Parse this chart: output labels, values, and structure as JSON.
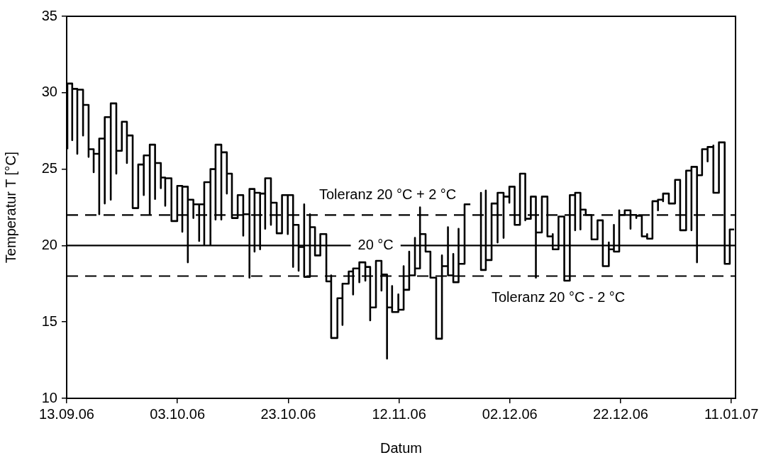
{
  "chart_data": {
    "type": "step",
    "xlabel": "Datum",
    "ylabel": "Temperatur T [°C]",
    "xlim": [
      "2006-09-13",
      "2007-01-11T18:00"
    ],
    "xticks": [
      {
        "value": "2006-09-13",
        "label": "13.09.06"
      },
      {
        "value": "2006-10-03",
        "label": "03.10.06"
      },
      {
        "value": "2006-10-23",
        "label": "23.10.06"
      },
      {
        "value": "2006-11-12",
        "label": "12.11.06"
      },
      {
        "value": "2006-12-02",
        "label": "02.12.06"
      },
      {
        "value": "2006-12-22",
        "label": "22.12.06"
      },
      {
        "value": "2007-01-11",
        "label": "11.01.07"
      }
    ],
    "ylim": [
      10,
      35
    ],
    "yticks": [
      10,
      15,
      20,
      25,
      30,
      35
    ],
    "ref_lines": [
      {
        "axis": "y",
        "value": 20,
        "label": "20 °C",
        "line_style": "solid",
        "color": "#000000"
      },
      {
        "axis": "y",
        "value": 22,
        "label": "Toleranz 20 °C + 2 °C",
        "line_style": "dashed",
        "color": "#000000"
      },
      {
        "axis": "y",
        "value": 18,
        "label": "Toleranz 20 °C - 2 °C",
        "line_style": "dashed",
        "color": "#000000"
      }
    ],
    "series": [
      {
        "color": "#000000",
        "x": [
          "2006-09-13T03:00",
          "2006-09-13T03:00",
          "2006-09-14T00:00",
          "2006-09-14T00:00",
          "2006-09-14T00:00",
          "2006-09-14T22:00",
          "2006-09-14T22:00",
          "2006-09-14T22:00",
          "2006-09-15T23:00",
          "2006-09-15T23:00",
          "2006-09-15T23:00",
          "2006-09-16T23:00",
          "2006-09-16T23:00",
          "2006-09-16T23:00",
          "2006-09-17T21:00",
          "2006-09-17T21:00",
          "2006-09-17T21:00",
          "2006-09-18T21:00",
          "2006-09-18T21:00",
          "2006-09-18T21:00",
          "2006-09-19T21:00",
          "2006-09-19T21:00",
          "2006-09-19T21:00",
          "2006-09-20T23:00",
          "2006-09-20T23:00",
          "2006-09-20T23:00",
          "2006-09-21T23:00",
          "2006-09-21T23:00",
          "2006-09-21T23:00",
          "2006-09-22T23:00",
          "2006-09-22T23:00",
          "2006-09-23T21:00",
          "2006-09-23T21:00",
          "2006-09-23T21:00",
          "2006-09-24T22:00",
          "2006-09-24T22:00",
          "2006-09-24T22:00",
          "2006-09-25T22:00",
          "2006-09-25T22:00",
          "2006-09-26T22:00",
          "2006-09-26T22:00",
          "2006-09-26T22:00",
          "2006-09-28T00:00",
          "2006-09-28T00:00",
          "2006-09-28T00:00",
          "2006-09-28T23:00",
          "2006-09-28T23:00",
          "2006-09-28T23:00",
          "2006-09-30T00:00",
          "2006-09-30T00:00",
          "2006-09-30T00:00",
          "2006-09-30T19:00",
          "2006-09-30T19:00",
          "2006-09-30T19:00",
          "2006-10-01T22:00",
          "2006-10-01T22:00",
          "2006-10-01T22:00",
          "2006-10-02T23:00",
          "2006-10-02T23:00",
          "2006-10-03T21:00",
          "2006-10-03T21:00",
          "2006-10-03T21:00",
          "2006-10-04T21:00",
          "2006-10-04T21:00",
          "2006-10-04T21:00",
          "2006-10-05T21:00",
          "2006-10-05T21:00",
          "2006-10-05T21:00",
          "2006-10-06T22:00",
          "2006-10-06T22:00",
          "2006-10-06T22:00",
          "2006-10-07T20:00",
          "2006-10-07T20:00",
          "2006-10-07T20:00",
          "2006-10-08T23:00",
          "2006-10-08T23:00",
          "2006-10-08T23:00",
          "2006-10-09T21:00",
          "2006-10-09T21:00",
          "2006-10-09T21:00",
          "2006-10-10T22:00",
          "2006-10-10T22:00",
          "2006-10-10T22:00",
          "2006-10-11T22:00",
          "2006-10-11T22:00",
          "2006-10-11T22:00",
          "2006-10-12T20:00",
          "2006-10-12T20:00",
          "2006-10-12T20:00",
          "2006-10-13T21:00",
          "2006-10-14T21:00",
          "2006-10-14T21:00",
          "2006-10-14T21:00",
          "2006-10-16T00:00",
          "2006-10-16T00:00",
          "2006-10-16T00:00",
          "2006-10-16T22:00",
          "2006-10-16T22:00",
          "2006-10-16T22:00",
          "2006-10-17T22:00",
          "2006-10-17T22:00",
          "2006-10-17T22:00",
          "2006-10-18T20:00",
          "2006-10-18T20:00",
          "2006-10-18T20:00",
          "2006-10-19T21:00",
          "2006-10-19T21:00",
          "2006-10-19T21:00",
          "2006-10-20T22:00",
          "2006-10-20T22:00",
          "2006-10-20T22:00",
          "2006-10-21T21:00",
          "2006-10-21T21:00",
          "2006-10-22T22:00",
          "2006-10-22T22:00",
          "2006-10-23T21:00",
          "2006-10-23T21:00",
          "2006-10-23T21:00",
          "2006-10-24T21:00",
          "2006-10-24T21:00",
          "2006-10-24T21:00",
          "2006-10-25T21:00",
          "2006-10-25T21:00",
          "2006-10-26T22:00",
          "2006-10-26T22:00",
          "2006-10-27T20:00",
          "2006-10-28T19:00",
          "2006-10-29T21:00",
          "2006-10-29T21:00",
          "2006-10-30T18:00",
          "2006-10-30T18:00",
          "2006-10-31T21:00",
          "2006-10-31T21:00",
          "2006-11-01T19:00",
          "2006-11-01T19:00",
          "2006-11-01T19:00",
          "2006-11-02T22:00",
          "2006-11-03T17:00",
          "2006-11-03T17:00",
          "2006-11-03T17:00",
          "2006-11-04T20:00",
          "2006-11-04T20:00",
          "2006-11-04T20:00",
          "2006-11-05T22:00",
          "2006-11-05T22:00",
          "2006-11-05T22:00",
          "2006-11-06T19:00",
          "2006-11-06T19:00",
          "2006-11-06T19:00",
          "2006-11-07T20:00",
          "2006-11-07T20:00",
          "2006-11-08T20:00",
          "2006-11-08T20:00",
          "2006-11-09T20:00",
          "2006-11-09T20:00",
          "2006-11-09T20:00",
          "2006-11-10T18:00",
          "2006-11-10T18:00",
          "2006-11-11T21:00",
          "2006-11-11T21:00",
          "2006-11-12T20:00",
          "2006-11-12T20:00",
          "2006-11-13T20:00",
          "2006-11-13T20:00",
          "2006-11-14T21:00",
          "2006-11-14T21:00",
          "2006-11-14T21:00",
          "2006-11-15T19:00",
          "2006-11-15T19:00",
          "2006-11-15T19:00",
          "2006-11-16T19:00",
          "2006-11-17T16:00",
          "2006-11-18T17:00",
          "2006-11-19T18:00",
          "2006-11-19T18:00",
          "2006-11-20T20:00",
          "2006-11-20T20:00",
          "2006-11-20T20:00",
          "2006-11-21T19:00",
          "2006-11-21T19:00",
          "2006-11-22T18:00",
          "2006-11-22T18:00",
          "2006-11-23T20:00",
          "2006-11-23T20:00",
          "2006-11-23T20:00",
          "2006-11-24T21:00",
          "2006-11-25T18:00",
          "2006-11-26T19:00",
          "2006-11-26T19:00",
          "2006-11-27T16:00",
          "2006-11-27T16:00",
          "2006-11-28T17:00",
          "2006-11-28T17:00",
          "2006-11-29T19:00",
          "2006-11-29T19:00",
          "2006-11-29T19:00",
          "2006-11-30T21:00",
          "2006-11-30T21:00",
          "2006-11-30T21:00",
          "2006-12-01T22:00",
          "2006-12-01T22:00",
          "2006-12-02T21:00",
          "2006-12-02T21:00",
          "2006-12-03T20:00",
          "2006-12-03T20:00",
          "2006-12-04T19:00",
          "2006-12-04T19:00",
          "2006-12-04T19:00",
          "2006-12-05T19:00",
          "2006-12-05T19:00",
          "2006-12-06T17:00",
          "2006-12-06T17:00",
          "2006-12-06T17:00",
          "2006-12-07T19:00",
          "2006-12-07T19:00",
          "2006-12-08T19:00",
          "2006-12-08T19:00",
          "2006-12-09T18:00",
          "2006-12-09T18:00",
          "2006-12-10T19:00",
          "2006-12-10T19:00",
          "2006-12-11T20:00",
          "2006-12-11T20:00",
          "2006-12-12T20:00",
          "2006-12-12T20:00",
          "2006-12-13T19:00",
          "2006-12-13T19:00",
          "2006-12-13T19:00",
          "2006-12-14T18:00",
          "2006-12-14T18:00",
          "2006-12-14T18:00",
          "2006-12-15T17:00",
          "2006-12-16T18:00",
          "2006-12-17T20:00",
          "2006-12-17T20:00",
          "2006-12-18T19:00",
          "2006-12-18T19:00",
          "2006-12-18T19:00",
          "2006-12-19T21:00",
          "2006-12-19T21:00",
          "2006-12-20T19:00",
          "2006-12-20T19:00",
          "2006-12-21T18:00",
          "2006-12-21T18:00",
          "2006-12-21T18:00",
          "2006-12-22T18:00",
          "2006-12-23T19:00",
          "2006-12-23T19:00",
          "2006-12-23T19:00",
          "2006-12-24T20:00",
          "2006-12-24T20:00",
          "2006-12-25T20:00",
          "2006-12-25T20:00",
          "2006-12-25T20:00",
          "2006-12-26T19:00",
          "2006-12-26T19:00",
          "2006-12-27T18:00",
          "2006-12-27T18:00",
          "2006-12-28T18:00",
          "2006-12-28T18:00",
          "2006-12-29T16:00",
          "2006-12-29T16:00",
          "2006-12-30T17:00",
          "2006-12-30T17:00",
          "2006-12-31T20:00",
          "2006-12-31T20:00",
          "2007-01-01T18:00",
          "2007-01-01T18:00",
          "2007-01-01T18:00",
          "2007-01-02T20:00",
          "2007-01-02T20:00",
          "2007-01-03T19:00",
          "2007-01-03T19:00",
          "2007-01-03T19:00",
          "2007-01-04T19:00",
          "2007-01-04T19:00",
          "2007-01-04T19:00",
          "2007-01-05T17:00",
          "2007-01-05T17:00",
          "2007-01-06T17:00",
          "2007-01-06T17:00",
          "2007-01-06T17:00",
          "2007-01-07T18:00",
          "2007-01-07T18:00",
          "2007-01-07T18:00",
          "2007-01-08T18:00",
          "2007-01-08T18:00",
          "2007-01-09T19:00",
          "2007-01-09T19:00",
          "2007-01-09T19:00",
          "2007-01-10T17:00",
          "2007-01-10T17:00",
          "2007-01-11T12:00"
        ],
        "values": [
          26.3,
          28.4,
          30.6,
          26.9,
          28.5,
          30.25,
          26.0,
          28.2,
          30.2,
          27.2,
          28.3,
          29.2,
          25.8,
          26.3,
          26.3,
          24.8,
          26.0,
          26.0,
          22.05,
          24.45,
          27.0,
          22.75,
          25.15,
          28.4,
          23.0,
          26.5,
          29.3,
          24.7,
          27.7,
          26.2,
          26.8,
          28.1,
          25.4,
          26.8,
          27.2,
          25.1,
          25.9,
          22.45,
          24.45,
          25.3,
          23.3,
          24.4,
          25.9,
          22.05,
          24.2,
          26.6,
          23.05,
          24.8,
          25.4,
          23.75,
          23.85,
          24.45,
          22.6,
          23.0,
          24.4,
          22.1,
          23.15,
          21.6,
          21.9,
          23.9,
          20.9,
          22.5,
          23.85,
          18.9,
          22.45,
          23.0,
          21.8,
          22.05,
          22.7,
          20.3,
          21.05,
          22.7,
          20.05,
          21.6,
          24.15,
          20.05,
          23.2,
          25.0,
          21.7,
          23.85,
          26.6,
          21.7,
          24.4,
          26.1,
          23.4,
          24.4,
          24.7,
          22.75,
          23.85,
          21.8,
          23.3,
          20.65,
          20.75,
          22.05,
          17.9,
          22.05,
          23.7,
          19.6,
          22.05,
          23.45,
          19.75,
          22.2,
          23.4,
          21.1,
          22.3,
          24.4,
          21.35,
          22.35,
          22.8,
          21.6,
          21.75,
          20.8,
          21.75,
          23.3,
          20.75,
          23.3,
          18.6,
          19.3,
          21.35,
          18.35,
          20.4,
          19.9,
          22.7,
          17.95,
          22.05,
          21.2,
          19.35,
          20.75,
          20.4,
          17.65,
          18.05,
          13.95,
          15.25,
          16.55,
          14.8,
          15.1,
          17.5,
          18.3,
          16.8,
          18.05,
          18.5,
          17.6,
          18.35,
          18.9,
          17.7,
          18.2,
          18.6,
          15.1,
          17.95,
          15.95,
          18.3,
          19.0,
          17.05,
          18.1,
          12.6,
          17.9,
          15.95,
          17.35,
          15.65,
          16.8,
          15.8,
          18.65,
          17.1,
          19.6,
          18.05,
          20.5,
          20.15,
          18.5,
          22.5,
          22.0,
          20.75,
          19.6,
          17.9,
          13.9,
          19.35,
          18.65,
          21.2,
          20.3,
          18.05,
          19.45,
          17.6,
          21.1,
          18.8,
          21.8,
          22.0,
          22.7,
          null,
          18.6,
          23.45,
          18.4,
          23.6,
          19.05,
          22.35,
          22.75,
          20.2,
          21.45,
          23.45,
          20.5,
          22.0,
          23.2,
          22.8,
          23.85,
          22.8,
          21.35,
          22.5,
          24.7,
          21.65,
          24.0,
          21.75,
          22.0,
          23.2,
          17.9,
          23.15,
          20.85,
          22.75,
          23.2,
          21.9,
          20.6,
          20.75,
          19.75,
          20.4,
          21.9,
          21.05,
          17.7,
          22.3,
          23.3,
          21.0,
          22.75,
          23.45,
          21.05,
          22.75,
          22.35,
          22.0,
          20.4,
          20.85,
          21.65,
          20.3,
          20.75,
          18.65,
          20.2,
          19.75,
          21.35,
          19.6,
          22.3,
          22.25,
          22.0,
          22.3,
          21.1,
          21.8,
          22.0,
          21.8,
          21.95,
          21.05,
          21.3,
          20.6,
          20.75,
          20.45,
          21.45,
          22.9,
          22.3,
          23.0,
          22.9,
          23.4,
          23.2,
          22.75,
          23.85,
          24.3,
          22.0,
          23.9,
          21.0,
          24.0,
          24.9,
          21.0,
          24.6,
          25.15,
          18.9,
          24.3,
          24.6,
          25.85,
          26.3,
          25.5,
          25.6,
          26.45,
          24.9,
          26.55,
          23.45,
          26.7,
          26.75,
          21.35,
          22.9,
          18.8,
          21.05,
          21.05
        ]
      }
    ]
  }
}
